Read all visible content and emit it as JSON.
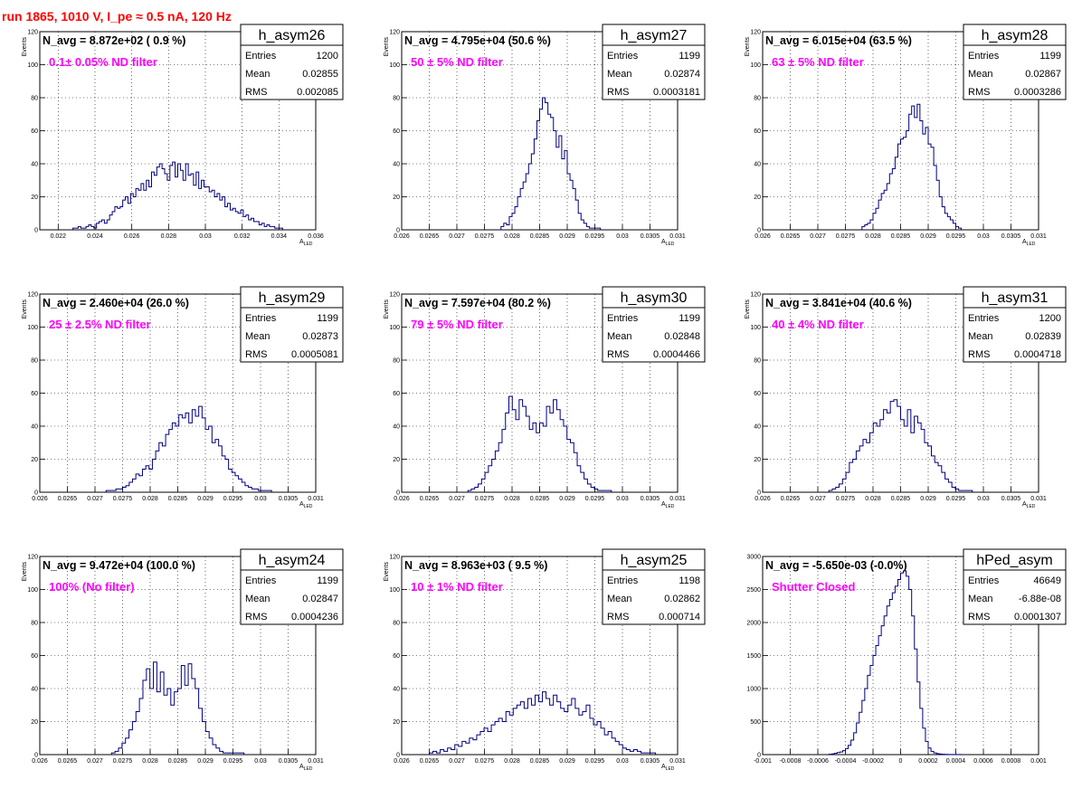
{
  "run_title": "run 1865,  1010 V, I_pe ≈ 0.5 nA, 120 Hz",
  "colors": {
    "histogram": "#00007f",
    "annotation": "#ff00ff",
    "title": "#ff0000",
    "grid": "#000000"
  },
  "chart_data": [
    {
      "type": "histogram",
      "name": "h_asym26",
      "navg": "N_avg = 8.872e+02 ( 0.9 %)",
      "filter": "0.1± 0.05% ND filter",
      "stats": [
        [
          "Entries",
          "1200"
        ],
        [
          "Mean",
          "0.02855"
        ],
        [
          "RMS",
          "0.002085"
        ]
      ],
      "ylabel": "Events",
      "xlabel": "A_LED",
      "xlim": [
        0.021,
        0.036
      ],
      "ylim": [
        0,
        120
      ],
      "xticks": [
        0.022,
        0.024,
        0.026,
        0.028,
        0.03,
        0.032,
        0.034,
        0.036
      ],
      "xticklabels": [
        "0.022",
        "0.024",
        "0.026",
        "0.028",
        "0.03",
        "0.032",
        "0.034",
        "0.036"
      ],
      "yticks": [
        0,
        20,
        40,
        60,
        80,
        100,
        120
      ],
      "yticklabels": [
        "0",
        "20",
        "40",
        "60",
        "80",
        "100",
        "120"
      ],
      "bin_range": [
        0.0228,
        0.0342
      ],
      "values": [
        1,
        1,
        2,
        1,
        1,
        2,
        3,
        2,
        1,
        4,
        5,
        6,
        4,
        6,
        9,
        11,
        14,
        13,
        14,
        18,
        20,
        16,
        22,
        20,
        25,
        24,
        28,
        24,
        30,
        26,
        35,
        33,
        38,
        40,
        37,
        34,
        30,
        39,
        41,
        32,
        40,
        36,
        30,
        40,
        33,
        34,
        27,
        35,
        25,
        30,
        26,
        26,
        23,
        24,
        20,
        22,
        18,
        20,
        14,
        16,
        12,
        13,
        11,
        10,
        12,
        8,
        9,
        6,
        7,
        5,
        5,
        3,
        4,
        2,
        3,
        2,
        2,
        1,
        1,
        1
      ]
    },
    {
      "type": "histogram",
      "name": "h_asym27",
      "navg": "N_avg = 4.795e+04 (50.6 %)",
      "filter": "50 ± 5% ND filter",
      "stats": [
        [
          "Entries",
          "1199"
        ],
        [
          "Mean",
          "0.02874"
        ],
        [
          "RMS",
          "0.0003181"
        ]
      ],
      "ylabel": "Events",
      "xlabel": "A_LED",
      "xlim": [
        0.026,
        0.031
      ],
      "ylim": [
        0,
        120
      ],
      "xticks": [
        0.026,
        0.0265,
        0.027,
        0.0275,
        0.028,
        0.0285,
        0.029,
        0.0295,
        0.03,
        0.0305,
        0.031
      ],
      "xticklabels": [
        "0.026",
        "0.0265",
        "0.027",
        "0.0275",
        "0.028",
        "0.0285",
        "0.029",
        "0.0295",
        "0.03",
        "0.0305",
        "0.031"
      ],
      "yticks": [
        0,
        20,
        40,
        60,
        80,
        100,
        120
      ],
      "yticklabels": [
        "0",
        "20",
        "40",
        "60",
        "80",
        "100",
        "120"
      ],
      "bin_range": [
        0.0278,
        0.0296
      ],
      "values": [
        2,
        4,
        3,
        8,
        10,
        14,
        20,
        25,
        29,
        34,
        40,
        46,
        55,
        66,
        73,
        80,
        77,
        70,
        68,
        60,
        50,
        57,
        43,
        48,
        34,
        30,
        25,
        18,
        10,
        6,
        4,
        2,
        1,
        1,
        1,
        1
      ]
    },
    {
      "type": "histogram",
      "name": "h_asym28",
      "navg": "N_avg = 6.015e+04 (63.5 %)",
      "filter": "63 ± 5% ND filter",
      "stats": [
        [
          "Entries",
          "1199"
        ],
        [
          "Mean",
          "0.02867"
        ],
        [
          "RMS",
          "0.0003286"
        ]
      ],
      "ylabel": "Events",
      "xlabel": "A_LED",
      "xlim": [
        0.026,
        0.031
      ],
      "ylim": [
        0,
        120
      ],
      "xticks": [
        0.026,
        0.0265,
        0.027,
        0.0275,
        0.028,
        0.0285,
        0.029,
        0.0295,
        0.03,
        0.0305,
        0.031
      ],
      "xticklabels": [
        "0.026",
        "0.0265",
        "0.027",
        "0.0275",
        "0.028",
        "0.0285",
        "0.029",
        "0.0295",
        "0.03",
        "0.0305",
        "0.031"
      ],
      "yticks": [
        0,
        20,
        40,
        60,
        80,
        100,
        120
      ],
      "yticklabels": [
        "0",
        "20",
        "40",
        "60",
        "80",
        "100",
        "120"
      ],
      "bin_range": [
        0.0278,
        0.0296
      ],
      "values": [
        2,
        3,
        4,
        6,
        10,
        13,
        18,
        22,
        24,
        28,
        34,
        37,
        44,
        52,
        55,
        56,
        60,
        70,
        75,
        68,
        76,
        66,
        58,
        62,
        52,
        50,
        39,
        30,
        20,
        14,
        10,
        8,
        6,
        4,
        2,
        1
      ]
    },
    {
      "type": "histogram",
      "name": "h_asym29",
      "navg": "N_avg = 2.460e+04 (26.0 %)",
      "filter": "25 ± 2.5% ND filter",
      "stats": [
        [
          "Entries",
          "1199"
        ],
        [
          "Mean",
          "0.02873"
        ],
        [
          "RMS",
          "0.0005081"
        ]
      ],
      "ylabel": "Events",
      "xlabel": "A_LED",
      "xlim": [
        0.026,
        0.031
      ],
      "ylim": [
        0,
        120
      ],
      "xticks": [
        0.026,
        0.0265,
        0.027,
        0.0275,
        0.028,
        0.0285,
        0.029,
        0.0295,
        0.03,
        0.0305,
        0.031
      ],
      "xticklabels": [
        "0.026",
        "0.0265",
        "0.027",
        "0.0275",
        "0.028",
        "0.0285",
        "0.029",
        "0.0295",
        "0.03",
        "0.0305",
        "0.031"
      ],
      "yticks": [
        0,
        20,
        40,
        60,
        80,
        100,
        120
      ],
      "yticklabels": [
        "0",
        "20",
        "40",
        "60",
        "80",
        "100",
        "120"
      ],
      "bin_range": [
        0.0272,
        0.0302
      ],
      "values": [
        1,
        1,
        1,
        2,
        2,
        3,
        4,
        6,
        8,
        11,
        10,
        14,
        16,
        14,
        20,
        25,
        30,
        28,
        35,
        38,
        42,
        40,
        47,
        45,
        48,
        42,
        50,
        46,
        52,
        45,
        38,
        40,
        30,
        32,
        28,
        22,
        20,
        14,
        12,
        10,
        8,
        6,
        4,
        3,
        2,
        2,
        1,
        1,
        1,
        1
      ]
    },
    {
      "type": "histogram",
      "name": "h_asym30",
      "navg": "N_avg = 7.597e+04 (80.2 %)",
      "filter": "79 ± 5% ND filter",
      "stats": [
        [
          "Entries",
          "1199"
        ],
        [
          "Mean",
          "0.02848"
        ],
        [
          "RMS",
          "0.0004466"
        ]
      ],
      "ylabel": "Events",
      "xlabel": "A_LED",
      "xlim": [
        0.026,
        0.031
      ],
      "ylim": [
        0,
        120
      ],
      "xticks": [
        0.026,
        0.0265,
        0.027,
        0.0275,
        0.028,
        0.0285,
        0.029,
        0.0295,
        0.03,
        0.0305,
        0.031
      ],
      "xticklabels": [
        "0.026",
        "0.0265",
        "0.027",
        "0.0275",
        "0.028",
        "0.0285",
        "0.029",
        "0.0295",
        "0.03",
        "0.0305",
        "0.031"
      ],
      "yticks": [
        0,
        20,
        40,
        60,
        80,
        100,
        120
      ],
      "yticklabels": [
        "0",
        "20",
        "40",
        "60",
        "80",
        "100",
        "120"
      ],
      "bin_range": [
        0.0272,
        0.0298
      ],
      "values": [
        1,
        2,
        3,
        5,
        8,
        12,
        16,
        20,
        25,
        30,
        38,
        48,
        58,
        50,
        44,
        56,
        52,
        46,
        38,
        42,
        36,
        42,
        40,
        52,
        48,
        56,
        50,
        44,
        40,
        32,
        30,
        24,
        16,
        12,
        8,
        5,
        3,
        2,
        1,
        1,
        1,
        1
      ]
    },
    {
      "type": "histogram",
      "name": "h_asym31",
      "navg": "N_avg = 3.841e+04 (40.6 %)",
      "filter": "40 ± 4% ND filter",
      "stats": [
        [
          "Entries",
          "1200"
        ],
        [
          "Mean",
          "0.02839"
        ],
        [
          "RMS",
          "0.0004718"
        ]
      ],
      "ylabel": "Events",
      "xlabel": "A_LED",
      "xlim": [
        0.026,
        0.031
      ],
      "ylim": [
        0,
        120
      ],
      "xticks": [
        0.026,
        0.0265,
        0.027,
        0.0275,
        0.028,
        0.0285,
        0.029,
        0.0295,
        0.03,
        0.0305,
        0.031
      ],
      "xticklabels": [
        "0.026",
        "0.0265",
        "0.027",
        "0.0275",
        "0.028",
        "0.0285",
        "0.029",
        "0.0295",
        "0.03",
        "0.0305",
        "0.031"
      ],
      "yticks": [
        0,
        20,
        40,
        60,
        80,
        100,
        120
      ],
      "yticklabels": [
        "0",
        "20",
        "40",
        "60",
        "80",
        "100",
        "120"
      ],
      "bin_range": [
        0.0272,
        0.0298
      ],
      "values": [
        1,
        2,
        3,
        5,
        8,
        12,
        18,
        20,
        25,
        28,
        32,
        30,
        36,
        42,
        40,
        44,
        50,
        48,
        55,
        56,
        52,
        44,
        40,
        50,
        36,
        46,
        42,
        38,
        30,
        28,
        22,
        18,
        16,
        12,
        8,
        6,
        3,
        2,
        1,
        1,
        1,
        1
      ]
    },
    {
      "type": "histogram",
      "name": "h_asym24",
      "navg": "N_avg = 9.472e+04 (100.0 %)",
      "filter": "100% (No filter)",
      "stats": [
        [
          "Entries",
          "1199"
        ],
        [
          "Mean",
          "0.02847"
        ],
        [
          "RMS",
          "0.0004236"
        ]
      ],
      "ylabel": "Events",
      "xlabel": "A_LED",
      "xlim": [
        0.026,
        0.031
      ],
      "ylim": [
        0,
        120
      ],
      "xticks": [
        0.026,
        0.0265,
        0.027,
        0.0275,
        0.028,
        0.0285,
        0.029,
        0.0295,
        0.03,
        0.0305,
        0.031
      ],
      "xticklabels": [
        "0.026",
        "0.0265",
        "0.027",
        "0.0275",
        "0.028",
        "0.0285",
        "0.029",
        "0.0295",
        "0.03",
        "0.0305",
        "0.031"
      ],
      "yticks": [
        0,
        20,
        40,
        60,
        80,
        100,
        120
      ],
      "yticklabels": [
        "0",
        "20",
        "40",
        "60",
        "80",
        "100",
        "120"
      ],
      "bin_range": [
        0.0273,
        0.0297
      ],
      "values": [
        1,
        2,
        4,
        7,
        10,
        15,
        20,
        26,
        34,
        45,
        52,
        40,
        56,
        38,
        50,
        36,
        40,
        30,
        38,
        40,
        54,
        42,
        55,
        46,
        40,
        28,
        20,
        14,
        10,
        6,
        4,
        2,
        1,
        1,
        1,
        1,
        1,
        1
      ]
    },
    {
      "type": "histogram",
      "name": "h_asym25",
      "navg": "N_avg = 8.963e+03 ( 9.5 %)",
      "filter": "10 ± 1% ND filter",
      "stats": [
        [
          "Entries",
          "1198"
        ],
        [
          "Mean",
          "0.02862"
        ],
        [
          "RMS",
          "0.000714"
        ]
      ],
      "ylabel": "Events",
      "xlabel": "A_LED",
      "xlim": [
        0.026,
        0.031
      ],
      "ylim": [
        0,
        120
      ],
      "xticks": [
        0.026,
        0.0265,
        0.027,
        0.0275,
        0.028,
        0.0285,
        0.029,
        0.0295,
        0.03,
        0.0305,
        0.031
      ],
      "xticklabels": [
        "0.026",
        "0.0265",
        "0.027",
        "0.0275",
        "0.028",
        "0.0285",
        "0.029",
        "0.0295",
        "0.03",
        "0.0305",
        "0.031"
      ],
      "yticks": [
        0,
        20,
        40,
        60,
        80,
        100,
        120
      ],
      "yticklabels": [
        "0",
        "20",
        "40",
        "60",
        "80",
        "100",
        "120"
      ],
      "bin_range": [
        0.0265,
        0.0306
      ],
      "values": [
        1,
        2,
        1,
        3,
        2,
        4,
        3,
        6,
        5,
        8,
        7,
        10,
        9,
        12,
        14,
        16,
        14,
        18,
        20,
        22,
        20,
        26,
        24,
        28,
        30,
        32,
        28,
        34,
        30,
        36,
        32,
        38,
        34,
        30,
        36,
        32,
        28,
        26,
        30,
        34,
        28,
        24,
        26,
        30,
        22,
        18,
        20,
        16,
        12,
        14,
        10,
        8,
        6,
        4,
        3,
        2,
        3,
        2,
        1,
        1,
        1,
        1
      ]
    },
    {
      "type": "histogram",
      "name": "hPed_asym",
      "navg": "N_avg = -5.650e-03 (-0.0%)",
      "filter": "Shutter Closed",
      "stats": [
        [
          "Entries",
          "46649"
        ],
        [
          "Mean",
          "-6.88e-08"
        ],
        [
          "RMS",
          "0.0001307"
        ]
      ],
      "ylabel": "",
      "xlabel": "",
      "xlim": [
        -0.001,
        0.001
      ],
      "ylim": [
        0,
        3000
      ],
      "xticks": [
        -0.001,
        -0.0008,
        -0.0006,
        -0.0004,
        -0.0002,
        0,
        0.0002,
        0.0004,
        0.0006,
        0.0008,
        0.001
      ],
      "xticklabels": [
        "-0.001",
        "-0.0008",
        "-0.0006",
        "-0.0004",
        "-0.0002",
        "0",
        "0.0002",
        "0.0004",
        "0.0006",
        "0.0008",
        "0.001"
      ],
      "yticks": [
        0,
        500,
        1000,
        1500,
        2000,
        2500,
        3000
      ],
      "yticklabels": [
        "0",
        "500",
        "1000",
        "1500",
        "2000",
        "2500",
        "3000"
      ],
      "bin_range": [
        -0.00052,
        0.00044
      ],
      "values": [
        5,
        10,
        20,
        30,
        40,
        60,
        90,
        140,
        220,
        330,
        480,
        640,
        820,
        1000,
        1200,
        1350,
        1500,
        1650,
        1800,
        1950,
        2100,
        2250,
        2350,
        2450,
        2550,
        2650,
        2750,
        2780,
        2700,
        2500,
        2100,
        1600,
        1100,
        700,
        400,
        200,
        100,
        50,
        25,
        15,
        8,
        5,
        3,
        1,
        1,
        1,
        1,
        1
      ]
    }
  ]
}
